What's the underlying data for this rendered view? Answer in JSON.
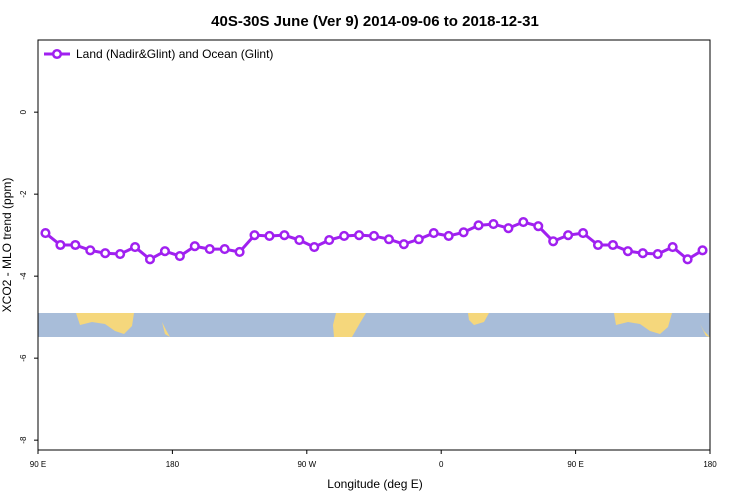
{
  "chart_data": {
    "type": "line",
    "title": "40S-30S June (Ver 9)   2014-09-06 to 2018-12-31",
    "x_label": "Longitude (deg E)",
    "y_label": "XCO2 - MLO trend (ppm)",
    "xlim": [
      90,
      540
    ],
    "xticks": [
      {
        "value": 90,
        "label": "90 E"
      },
      180,
      {
        "value": 270,
        "label": "90 W"
      },
      {
        "value": 360,
        "label": "0"
      },
      {
        "value": 450,
        "label": "90 E"
      },
      {
        "value": 540,
        "label": "180"
      }
    ],
    "ylim": [
      -8.24,
      1.76
    ],
    "yticks": [
      0,
      -2,
      -4,
      -6,
      -8
    ],
    "legend": "top-left",
    "x": [
      95,
      105,
      115,
      125,
      135,
      145,
      155,
      165,
      175,
      185,
      195,
      205,
      215,
      225,
      235,
      245,
      255,
      265,
      275,
      285,
      295,
      305,
      315,
      325,
      335,
      345,
      355,
      365,
      375,
      385,
      395,
      405,
      415,
      425,
      435,
      445,
      455,
      465,
      475,
      485,
      495,
      505,
      515,
      525,
      535
    ],
    "series": [
      {
        "name": "Land (Nadir&Glint) and Ocean (Glint)",
        "color": "#a020f0",
        "values": [
          -2.95,
          -3.24,
          -3.24,
          -3.37,
          -3.44,
          -3.46,
          -3.29,
          -3.59,
          -3.39,
          -3.51,
          -3.27,
          -3.34,
          -3.34,
          -3.41,
          -3.0,
          -3.02,
          -3.0,
          -3.12,
          -3.29,
          -3.12,
          -3.02,
          -3.0,
          -3.02,
          -3.1,
          -3.22,
          -3.1,
          -2.95,
          -3.02,
          -2.93,
          -2.76,
          -2.73,
          -2.83,
          -2.68,
          -2.78,
          -3.15,
          -3.0,
          -2.95,
          -3.24,
          -3.24,
          -3.39,
          -3.44,
          -3.46,
          -3.29,
          -3.59,
          -3.37
        ]
      }
    ]
  }
}
